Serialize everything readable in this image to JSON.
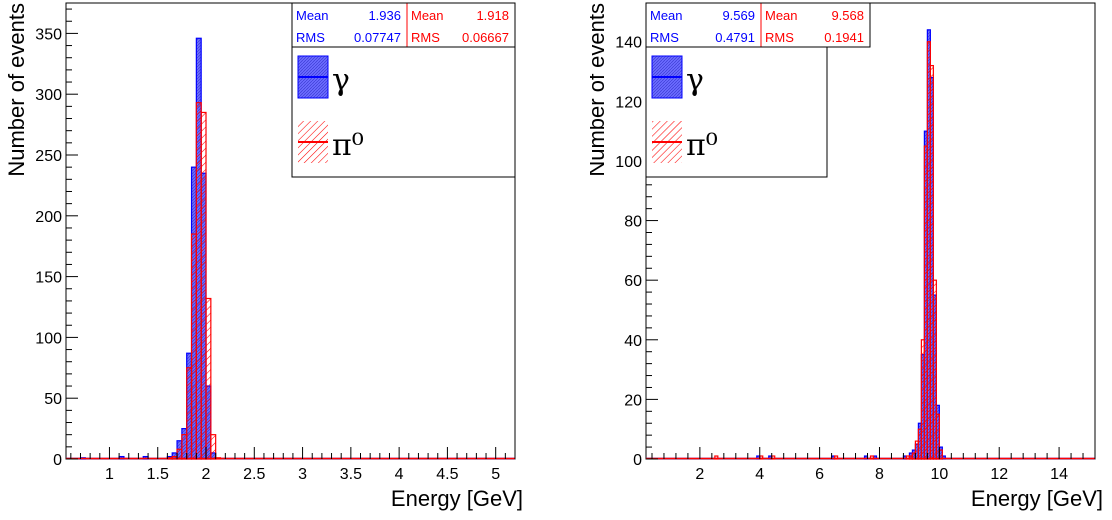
{
  "colors": {
    "gamma": "#0000ff",
    "pi0": "#ff0000",
    "gamma_fill": "#6b6bff",
    "axis": "#000000"
  },
  "chart_data": [
    {
      "type": "bar",
      "xlabel": "Energy [GeV]",
      "ylabel": "Number of events",
      "xlim": [
        0.55,
        5.2
      ],
      "ylim": [
        0,
        375
      ],
      "xticks": [
        1,
        1.5,
        2,
        2.5,
        3,
        3.5,
        4,
        4.5,
        5
      ],
      "xtick_labels": [
        "1",
        "1.5",
        "2",
        "2.5",
        "3",
        "3.5",
        "4",
        "4.5",
        "5"
      ],
      "yticks": [
        0,
        50,
        100,
        150,
        200,
        250,
        300,
        350
      ],
      "ytick_labels": [
        "0",
        "50",
        "100",
        "150",
        "200",
        "250",
        "300",
        "350"
      ],
      "bin_width": 0.05,
      "legend": [
        "γ",
        "π⁰"
      ],
      "stats": {
        "gamma": {
          "mean_label": "Mean",
          "mean": "1.936",
          "rms_label": "RMS",
          "rms": "0.07747"
        },
        "pi0": {
          "mean_label": "Mean",
          "mean": "1.918",
          "rms_label": "RMS",
          "rms": "0.06667"
        }
      },
      "series": [
        {
          "values": [
            [
              0.7,
              1
            ],
            [
              1.1,
              2
            ],
            [
              1.35,
              2
            ],
            [
              1.6,
              2
            ],
            [
              1.65,
              5
            ],
            [
              1.7,
              15
            ],
            [
              1.75,
              25
            ],
            [
              1.8,
              87
            ],
            [
              1.85,
              240
            ],
            [
              1.9,
              346
            ],
            [
              1.95,
              235
            ],
            [
              2.0,
              60
            ],
            [
              2.05,
              5
            ]
          ]
        },
        {
          "values": [
            [
              1.6,
              1
            ],
            [
              1.65,
              2
            ],
            [
              1.7,
              8
            ],
            [
              1.75,
              20
            ],
            [
              1.8,
              75
            ],
            [
              1.85,
              185
            ],
            [
              1.9,
              293
            ],
            [
              1.95,
              285
            ],
            [
              2.0,
              132
            ],
            [
              2.05,
              20
            ],
            [
              2.1,
              1
            ]
          ]
        }
      ]
    },
    {
      "type": "bar",
      "xlabel": "Energy [GeV]",
      "ylabel": "Number of events",
      "xlim": [
        0.2,
        15.2
      ],
      "ylim": [
        0,
        153
      ],
      "xticks": [
        2,
        4,
        6,
        8,
        10,
        12,
        14
      ],
      "xtick_labels": [
        "2",
        "4",
        "6",
        "8",
        "10",
        "12",
        "14"
      ],
      "yticks": [
        0,
        20,
        40,
        60,
        80,
        100,
        120,
        140
      ],
      "ytick_labels": [
        "0",
        "20",
        "40",
        "60",
        "80",
        "100",
        "120",
        "140"
      ],
      "bin_width": 0.1,
      "legend": [
        "γ",
        "π⁰"
      ],
      "stats": {
        "gamma": {
          "mean_label": "Mean",
          "mean": "9.569",
          "rms_label": "RMS",
          "rms": "0.4791"
        },
        "pi0": {
          "mean_label": "Mean",
          "mean": "9.568",
          "rms_label": "RMS",
          "rms": "0.1941"
        }
      },
      "series": [
        {
          "values": [
            [
              3.9,
              1
            ],
            [
              4.3,
              1
            ],
            [
              6.4,
              1
            ],
            [
              7.5,
              1
            ],
            [
              7.8,
              1
            ],
            [
              8.8,
              1
            ],
            [
              9.0,
              2
            ],
            [
              9.1,
              3
            ],
            [
              9.2,
              5
            ],
            [
              9.3,
              12
            ],
            [
              9.4,
              35
            ],
            [
              9.5,
              110
            ],
            [
              9.6,
              144
            ],
            [
              9.7,
              128
            ],
            [
              9.8,
              55
            ],
            [
              9.9,
              18
            ],
            [
              10.0,
              4
            ],
            [
              10.1,
              1
            ]
          ]
        },
        {
          "values": [
            [
              2.5,
              1
            ],
            [
              4.0,
              1
            ],
            [
              4.4,
              1
            ],
            [
              6.5,
              1
            ],
            [
              7.7,
              1
            ],
            [
              8.9,
              1
            ],
            [
              9.0,
              1
            ],
            [
              9.1,
              2
            ],
            [
              9.2,
              6
            ],
            [
              9.3,
              10
            ],
            [
              9.4,
              40
            ],
            [
              9.5,
              105
            ],
            [
              9.6,
              140
            ],
            [
              9.7,
              132
            ],
            [
              9.8,
              60
            ],
            [
              9.9,
              15
            ],
            [
              10.0,
              3
            ]
          ]
        }
      ]
    }
  ]
}
